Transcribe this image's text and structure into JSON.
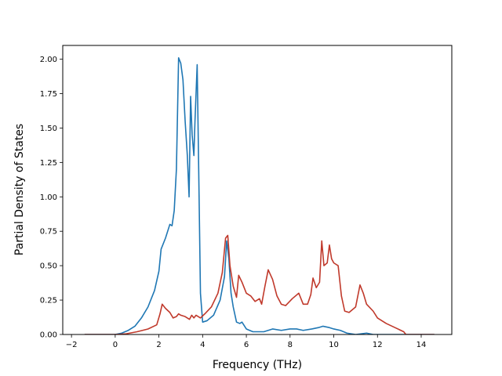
{
  "chart_data": {
    "type": "line",
    "xlabel": "Frequency (THz)",
    "ylabel": "Partial Density of States",
    "xlim": [
      -2.4,
      15.4
    ],
    "ylim": [
      0,
      2.1
    ],
    "x_ticks": [
      -2,
      0,
      2,
      4,
      6,
      8,
      10,
      12,
      14
    ],
    "y_ticks": [
      0.0,
      0.25,
      0.5,
      0.75,
      1.0,
      1.25,
      1.5,
      1.75,
      2.0
    ],
    "x_tick_labels": [
      "−2",
      "0",
      "2",
      "4",
      "6",
      "8",
      "10",
      "12",
      "14"
    ],
    "y_tick_labels": [
      "0.00",
      "0.25",
      "0.50",
      "0.75",
      "1.00",
      "1.25",
      "1.50",
      "1.75",
      "2.00"
    ],
    "grid": false,
    "legend": "none",
    "series": [
      {
        "color": "#1f77b4",
        "points": [
          [
            -1.4,
            0
          ],
          [
            0.0,
            0.0
          ],
          [
            0.3,
            0.01
          ],
          [
            0.6,
            0.03
          ],
          [
            0.9,
            0.06
          ],
          [
            1.2,
            0.12
          ],
          [
            1.5,
            0.2
          ],
          [
            1.8,
            0.32
          ],
          [
            2.0,
            0.46
          ],
          [
            2.1,
            0.62
          ],
          [
            2.3,
            0.7
          ],
          [
            2.5,
            0.8
          ],
          [
            2.6,
            0.79
          ],
          [
            2.7,
            0.9
          ],
          [
            2.8,
            1.2
          ],
          [
            2.85,
            1.6
          ],
          [
            2.9,
            2.01
          ],
          [
            3.0,
            1.97
          ],
          [
            3.1,
            1.85
          ],
          [
            3.2,
            1.55
          ],
          [
            3.3,
            1.3
          ],
          [
            3.38,
            1.0
          ],
          [
            3.45,
            1.73
          ],
          [
            3.52,
            1.45
          ],
          [
            3.6,
            1.3
          ],
          [
            3.65,
            1.55
          ],
          [
            3.75,
            1.96
          ],
          [
            3.82,
            1.2
          ],
          [
            3.9,
            0.3
          ],
          [
            4.0,
            0.09
          ],
          [
            4.2,
            0.1
          ],
          [
            4.5,
            0.14
          ],
          [
            4.8,
            0.25
          ],
          [
            5.0,
            0.42
          ],
          [
            5.1,
            0.68
          ],
          [
            5.2,
            0.55
          ],
          [
            5.3,
            0.3
          ],
          [
            5.4,
            0.2
          ],
          [
            5.55,
            0.09
          ],
          [
            5.7,
            0.08
          ],
          [
            5.8,
            0.09
          ],
          [
            6.0,
            0.04
          ],
          [
            6.3,
            0.02
          ],
          [
            6.8,
            0.02
          ],
          [
            7.2,
            0.04
          ],
          [
            7.6,
            0.03
          ],
          [
            8.0,
            0.04
          ],
          [
            8.3,
            0.04
          ],
          [
            8.6,
            0.03
          ],
          [
            9.0,
            0.04
          ],
          [
            9.3,
            0.05
          ],
          [
            9.5,
            0.06
          ],
          [
            9.8,
            0.05
          ],
          [
            10.0,
            0.04
          ],
          [
            10.3,
            0.03
          ],
          [
            10.6,
            0.01
          ],
          [
            11.0,
            0.0
          ],
          [
            11.5,
            0.01
          ],
          [
            11.8,
            0.0
          ],
          [
            12.5,
            0.0
          ],
          [
            13.3,
            0.0
          ],
          [
            14.6,
            0
          ]
        ]
      },
      {
        "color": "#c0392b",
        "points": [
          [
            -1.4,
            0
          ],
          [
            0.0,
            0.0
          ],
          [
            0.5,
            0.005
          ],
          [
            1.0,
            0.02
          ],
          [
            1.5,
            0.04
          ],
          [
            1.9,
            0.07
          ],
          [
            2.05,
            0.15
          ],
          [
            2.15,
            0.22
          ],
          [
            2.3,
            0.19
          ],
          [
            2.5,
            0.16
          ],
          [
            2.65,
            0.12
          ],
          [
            2.8,
            0.13
          ],
          [
            2.9,
            0.15
          ],
          [
            3.0,
            0.14
          ],
          [
            3.2,
            0.13
          ],
          [
            3.4,
            0.11
          ],
          [
            3.5,
            0.14
          ],
          [
            3.6,
            0.12
          ],
          [
            3.7,
            0.14
          ],
          [
            3.9,
            0.12
          ],
          [
            4.1,
            0.15
          ],
          [
            4.4,
            0.2
          ],
          [
            4.7,
            0.3
          ],
          [
            4.9,
            0.45
          ],
          [
            5.05,
            0.7
          ],
          [
            5.15,
            0.72
          ],
          [
            5.25,
            0.5
          ],
          [
            5.4,
            0.35
          ],
          [
            5.55,
            0.27
          ],
          [
            5.65,
            0.43
          ],
          [
            5.8,
            0.38
          ],
          [
            6.0,
            0.3
          ],
          [
            6.2,
            0.28
          ],
          [
            6.4,
            0.24
          ],
          [
            6.6,
            0.26
          ],
          [
            6.7,
            0.22
          ],
          [
            6.85,
            0.35
          ],
          [
            7.0,
            0.47
          ],
          [
            7.2,
            0.4
          ],
          [
            7.4,
            0.28
          ],
          [
            7.6,
            0.22
          ],
          [
            7.8,
            0.21
          ],
          [
            8.1,
            0.26
          ],
          [
            8.4,
            0.3
          ],
          [
            8.6,
            0.22
          ],
          [
            8.8,
            0.22
          ],
          [
            8.95,
            0.29
          ],
          [
            9.05,
            0.41
          ],
          [
            9.2,
            0.34
          ],
          [
            9.35,
            0.38
          ],
          [
            9.45,
            0.68
          ],
          [
            9.55,
            0.5
          ],
          [
            9.7,
            0.52
          ],
          [
            9.8,
            0.65
          ],
          [
            9.9,
            0.55
          ],
          [
            10.0,
            0.52
          ],
          [
            10.2,
            0.5
          ],
          [
            10.35,
            0.28
          ],
          [
            10.5,
            0.17
          ],
          [
            10.7,
            0.16
          ],
          [
            11.0,
            0.2
          ],
          [
            11.2,
            0.36
          ],
          [
            11.35,
            0.3
          ],
          [
            11.5,
            0.22
          ],
          [
            11.8,
            0.17
          ],
          [
            12.0,
            0.12
          ],
          [
            12.4,
            0.08
          ],
          [
            12.8,
            0.05
          ],
          [
            13.2,
            0.02
          ],
          [
            13.3,
            0.0
          ],
          [
            14.6,
            0
          ]
        ]
      }
    ]
  }
}
